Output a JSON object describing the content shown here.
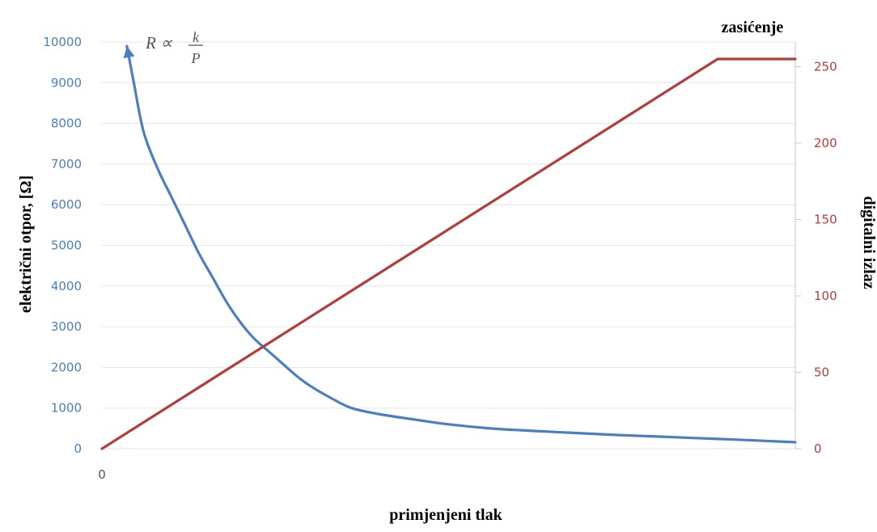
{
  "chart_data": {
    "type": "line",
    "x_axis": {
      "label": "primjenjeni tlak",
      "tick_labels": [
        "0"
      ]
    },
    "y_axis_left": {
      "label": "električni otpor, [Ω]",
      "range": [
        0,
        10000
      ],
      "ticks": [
        0,
        1000,
        2000,
        3000,
        4000,
        5000,
        6000,
        7000,
        8000,
        9000,
        10000
      ],
      "color": "#4a7fc1"
    },
    "y_axis_right": {
      "label": "digitalni izlaz",
      "range": [
        0,
        255
      ],
      "ticks": [
        0,
        50,
        100,
        150,
        200,
        250
      ],
      "color": "#b43c3c"
    },
    "grid": true,
    "annotations": {
      "formula": {
        "prefix": "R ∝",
        "numerator": "k",
        "denominator": "P"
      },
      "saturation": "zasićenje"
    },
    "series": [
      {
        "axis": "left",
        "color": "#4a7fc1",
        "arrow_at_start": true,
        "x": [
          0.036,
          0.046,
          0.06,
          0.08,
          0.1,
          0.12,
          0.14,
          0.16,
          0.18,
          0.2,
          0.22,
          0.24,
          0.26,
          0.28,
          0.3,
          0.33,
          0.36,
          0.4,
          0.45,
          0.5,
          0.56,
          0.62,
          0.68,
          0.74,
          0.8,
          0.86,
          0.92,
          0.96,
          1.0
        ],
        "values": [
          9900,
          9000,
          7800,
          6900,
          6200,
          5500,
          4800,
          4200,
          3600,
          3100,
          2700,
          2400,
          2100,
          1800,
          1550,
          1250,
          1000,
          850,
          720,
          600,
          500,
          440,
          390,
          340,
          300,
          260,
          220,
          190,
          160
        ]
      },
      {
        "axis": "right",
        "color": "#b43c3c",
        "x": [
          0.0,
          0.888,
          1.0
        ],
        "values": [
          0,
          255,
          255
        ]
      }
    ]
  }
}
